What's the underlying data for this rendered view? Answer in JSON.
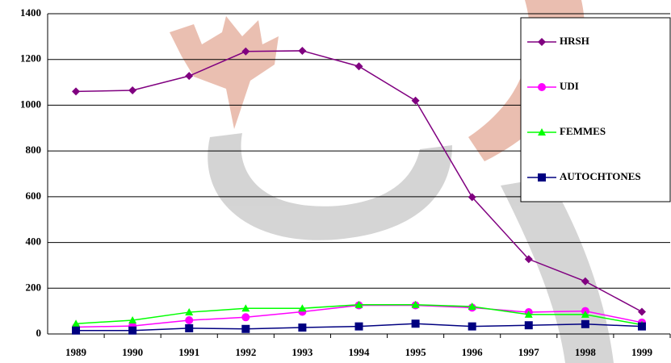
{
  "chart_data": {
    "type": "line",
    "categories": [
      "1989",
      "1990",
      "1991",
      "1992",
      "1993",
      "1994",
      "1995",
      "1996",
      "1997",
      "1998",
      "1999"
    ],
    "series": [
      {
        "name": "HRSH",
        "color": "#800080",
        "marker": "diamond",
        "values": [
          1060,
          1065,
          1128,
          1235,
          1238,
          1170,
          1020,
          598,
          327,
          230,
          97
        ]
      },
      {
        "name": "UDI",
        "color": "#ff00ff",
        "marker": "circle",
        "values": [
          30,
          35,
          60,
          73,
          97,
          125,
          125,
          115,
          95,
          100,
          50
        ]
      },
      {
        "name": "FEMMES",
        "color": "#00ff00",
        "marker": "triangle",
        "values": [
          45,
          60,
          95,
          112,
          112,
          128,
          128,
          120,
          85,
          85,
          40
        ]
      },
      {
        "name": "AUTOCHTONES",
        "color": "#000080",
        "marker": "square",
        "values": [
          15,
          15,
          25,
          22,
          28,
          33,
          45,
          33,
          38,
          43,
          33
        ]
      }
    ],
    "ylim": [
      0,
      1400
    ],
    "yticks": [
      0,
      200,
      400,
      600,
      800,
      1000,
      1200,
      1400
    ],
    "grid": true,
    "legend": "right"
  }
}
